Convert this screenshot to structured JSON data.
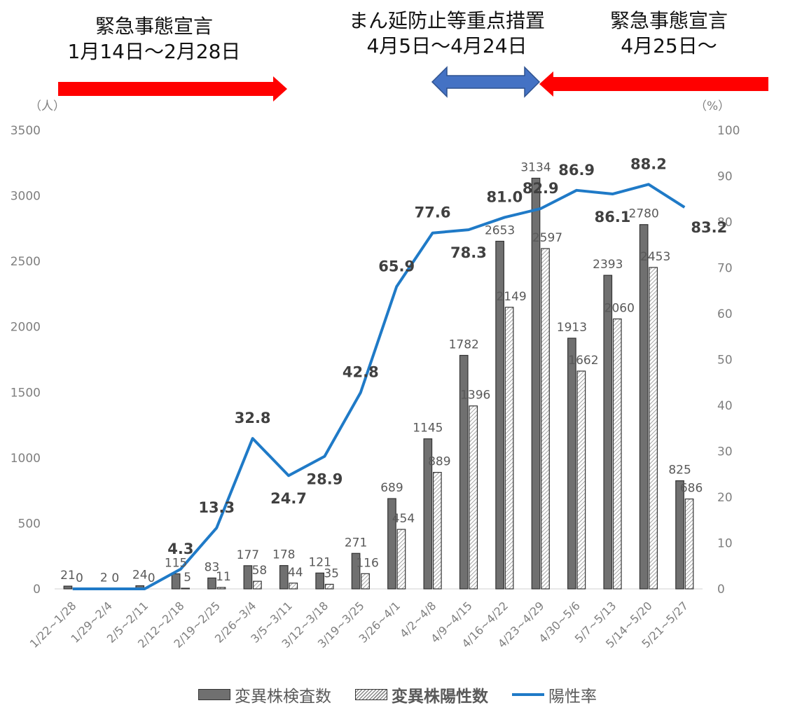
{
  "banners": [
    {
      "id": "emergency-1",
      "line1": "緊急事態宣言",
      "line2": "1月14日～2月28日"
    },
    {
      "id": "quasi",
      "line1": "まん延防止等重点措置",
      "line2": "4月5日～4月24日"
    },
    {
      "id": "emergency-2",
      "line1": "緊急事態宣言",
      "line2": "4月25日～"
    }
  ],
  "colors": {
    "emergency_arrow": "#ff0000",
    "quasi_arrow": "#4472c4",
    "bar_tested": "#707070",
    "bar_positive_hatch": "#8a8a8a",
    "rate_line": "#1f7ac7"
  },
  "chart_data": {
    "type": "bar",
    "categories": [
      "1/22~1/28",
      "1/29~2/4",
      "2/5~2/11",
      "2/12~2/18",
      "2/19~2/25",
      "2/26~3/4",
      "3/5~3/11",
      "3/12~3/18",
      "3/19~3/25",
      "3/26~4/1",
      "4/2~4/8",
      "4/9~4/15",
      "4/16~4/22",
      "4/23~4/29",
      "4/30~5/6",
      "5/7~5/13",
      "5/14~5/20",
      "5/21~5/27"
    ],
    "series": [
      {
        "name": "変異株検査数",
        "type": "bar",
        "axis": "left",
        "style": "solid",
        "values": [
          21,
          2,
          24,
          115,
          83,
          177,
          178,
          121,
          271,
          689,
          1145,
          1782,
          2653,
          3134,
          1913,
          2393,
          2780,
          825
        ],
        "labels": [
          "21",
          "2",
          "24",
          "115",
          "83",
          "177",
          "178",
          "121",
          "271",
          "689",
          "1145",
          "1782",
          "2653",
          "3134",
          "1913",
          "2393",
          "2780",
          "825"
        ]
      },
      {
        "name": "変異株陽性数",
        "type": "bar",
        "axis": "left",
        "style": "hatched",
        "values": [
          0,
          0,
          0,
          5,
          11,
          58,
          44,
          35,
          116,
          454,
          889,
          1396,
          2149,
          2597,
          1662,
          2060,
          2453,
          686
        ],
        "labels": [
          "0",
          "0",
          "0",
          "5",
          "11",
          "58",
          "44",
          "35",
          "116",
          "454",
          "889",
          "1396",
          "2149",
          "2597",
          "1662",
          "2060",
          "2453",
          "686"
        ]
      },
      {
        "name": "陽性率",
        "type": "line",
        "axis": "right",
        "values": [
          0,
          0,
          0,
          4.3,
          13.3,
          32.8,
          24.7,
          28.9,
          42.8,
          65.9,
          77.6,
          78.3,
          81.0,
          82.9,
          86.9,
          86.1,
          88.2,
          83.2
        ],
        "labels": [
          "",
          "",
          "",
          "4.3",
          "13.3",
          "32.8",
          "24.7",
          "28.9",
          "42.8",
          "65.9",
          "77.6",
          "78.3",
          "81.0",
          "82.9",
          "86.9",
          "86.1",
          "88.2",
          "83.2"
        ]
      }
    ],
    "y_left": {
      "unit": "（人）",
      "ylim": [
        0,
        3500
      ],
      "ticks": [
        "0",
        "500",
        "1000",
        "1500",
        "2000",
        "2500",
        "3000",
        "3500"
      ]
    },
    "y_right": {
      "unit": "（%）",
      "ylim": [
        0,
        100
      ],
      "ticks": [
        "0",
        "10",
        "20",
        "30",
        "40",
        "50",
        "60",
        "70",
        "80",
        "90",
        "100"
      ]
    },
    "grid": false,
    "legend_position": "bottom"
  }
}
